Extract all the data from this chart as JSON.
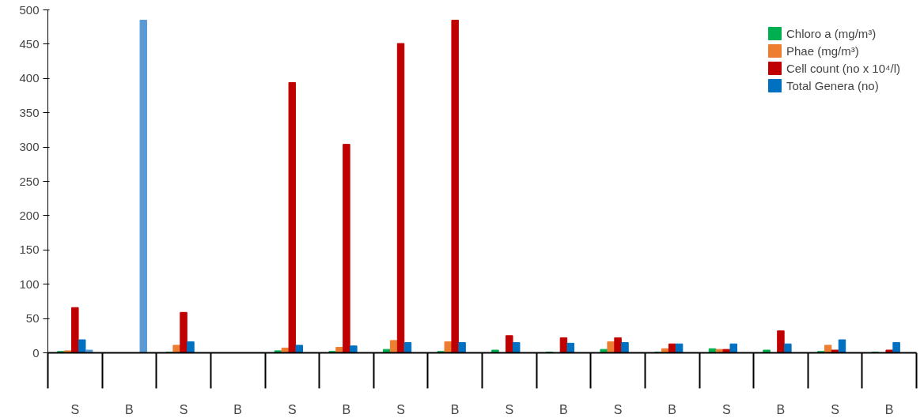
{
  "chart_data": {
    "type": "bar",
    "categories": [
      "S",
      "B",
      "S",
      "B",
      "S",
      "B",
      "S",
      "B",
      "S",
      "B",
      "S",
      "B",
      "S",
      "B",
      "S",
      "B"
    ],
    "series": [
      {
        "name": "Chloro a (mg/m³)",
        "color": "#00b050",
        "values": [
          2,
          null,
          1,
          null,
          3,
          2,
          5,
          2,
          4,
          1,
          5,
          1,
          6,
          4,
          2,
          1
        ]
      },
      {
        "name": "Phae (mg/m³)",
        "color": "#ed7d31",
        "values": [
          3,
          null,
          11,
          null,
          7,
          8,
          18,
          16,
          null,
          null,
          16,
          6,
          5,
          null,
          11,
          null
        ]
      },
      {
        "name": "Cell count (no x 10⁴/l)",
        "color": "#c00000",
        "values": [
          66,
          null,
          59,
          null,
          394,
          304,
          451,
          485,
          25,
          22,
          22,
          13,
          5,
          32,
          4,
          4
        ]
      },
      {
        "name": "Total Genera (no)",
        "color": "#0070c0",
        "values": [
          19,
          null,
          16,
          null,
          11,
          10,
          15,
          15,
          15,
          14,
          15,
          13,
          13,
          13,
          19,
          15
        ]
      },
      {
        "color": "#5b9bd5",
        "values": [
          4,
          485,
          null,
          null,
          null,
          null,
          null,
          null,
          null,
          null,
          null,
          null,
          null,
          null,
          null,
          null
        ]
      }
    ],
    "ylim": [
      0,
      500
    ],
    "yticks": [
      0,
      50,
      100,
      150,
      200,
      250,
      300,
      350,
      400,
      450,
      500
    ],
    "grid": false,
    "legend": "top right"
  }
}
